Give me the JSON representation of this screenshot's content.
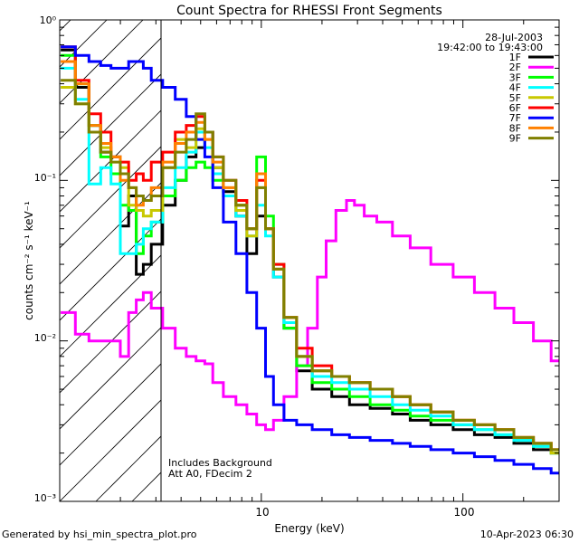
{
  "chart_data": {
    "type": "line",
    "title": "Count Spectra for RHESSI Front Segments",
    "xlabel": "Energy (keV)",
    "ylabel": "counts cm⁻² s⁻¹ keV⁻¹",
    "xscale": "log",
    "yscale": "log",
    "xlim": [
      1.0,
      300.0
    ],
    "ylim": [
      0.001,
      1.0
    ],
    "x_ticks": [
      "10",
      "100"
    ],
    "y_ticks": [
      "10⁻³",
      "10⁻²",
      "10⁻¹",
      "10⁰"
    ],
    "date": "28-Jul-2003",
    "time_range": "19:42:00 to 19:43:00",
    "attenuator_threshold_kev": 3.0,
    "annotations": [
      "Includes Background",
      "Att A0, FDecim 2"
    ],
    "legend_position": "top-right",
    "series": [
      {
        "name": "1F",
        "color": "#000000",
        "x": [
          1.1,
          1.3,
          1.5,
          1.7,
          1.9,
          2.1,
          2.3,
          2.5,
          2.7,
          3.0,
          3.5,
          4.0,
          4.5,
          5.0,
          5.5,
          6.0,
          7.0,
          8.0,
          9.0,
          10.0,
          11.0,
          12.0,
          14.0,
          16.0,
          20.0,
          25.0,
          30.0,
          40.0,
          50.0,
          60.0,
          80.0,
          100.0,
          130.0,
          160.0,
          200.0,
          250.0,
          300.0
        ],
        "values": [
          0.65,
          0.38,
          0.22,
          0.15,
          0.14,
          0.052,
          0.08,
          0.026,
          0.03,
          0.04,
          0.07,
          0.1,
          0.14,
          0.16,
          0.2,
          0.12,
          0.085,
          0.06,
          0.035,
          0.06,
          0.05,
          0.025,
          0.012,
          0.0065,
          0.005,
          0.0045,
          0.004,
          0.0038,
          0.0035,
          0.0032,
          0.003,
          0.0028,
          0.0026,
          0.0025,
          0.0023,
          0.0021,
          0.002
        ]
      },
      {
        "name": "2F",
        "color": "#ff00ff",
        "x": [
          1.1,
          1.3,
          1.5,
          1.7,
          1.9,
          2.1,
          2.3,
          2.5,
          2.7,
          3.0,
          3.5,
          4.0,
          4.5,
          5.0,
          5.5,
          6.0,
          7.0,
          8.0,
          9.0,
          10.0,
          11.0,
          12.0,
          14.0,
          16.0,
          18.0,
          20.0,
          22.0,
          25.0,
          28.0,
          30.0,
          35.0,
          40.0,
          50.0,
          60.0,
          80.0,
          100.0,
          130.0,
          160.0,
          200.0,
          250.0,
          300.0
        ],
        "values": [
          0.015,
          0.011,
          0.01,
          0.01,
          0.01,
          0.008,
          0.015,
          0.018,
          0.02,
          0.016,
          0.012,
          0.009,
          0.008,
          0.0075,
          0.0072,
          0.0055,
          0.0045,
          0.004,
          0.0035,
          0.003,
          0.0028,
          0.0032,
          0.0045,
          0.007,
          0.012,
          0.025,
          0.042,
          0.065,
          0.075,
          0.07,
          0.06,
          0.055,
          0.045,
          0.038,
          0.03,
          0.025,
          0.02,
          0.016,
          0.013,
          0.01,
          0.0075
        ]
      },
      {
        "name": "3F",
        "color": "#00ff00",
        "x": [
          1.1,
          1.3,
          1.5,
          1.7,
          1.9,
          2.1,
          2.3,
          2.5,
          2.7,
          3.0,
          3.5,
          4.0,
          4.5,
          5.0,
          5.5,
          6.0,
          7.0,
          8.0,
          9.0,
          10.0,
          11.0,
          12.0,
          14.0,
          16.0,
          20.0,
          25.0,
          30.0,
          40.0,
          50.0,
          60.0,
          80.0,
          100.0,
          130.0,
          160.0,
          200.0,
          250.0,
          300.0
        ],
        "values": [
          0.6,
          0.4,
          0.22,
          0.14,
          0.11,
          0.07,
          0.065,
          0.035,
          0.045,
          0.055,
          0.08,
          0.1,
          0.12,
          0.13,
          0.12,
          0.1,
          0.08,
          0.07,
          0.05,
          0.14,
          0.06,
          0.03,
          0.012,
          0.007,
          0.0055,
          0.005,
          0.0045,
          0.004,
          0.0037,
          0.0034,
          0.0032,
          0.003,
          0.0028,
          0.0026,
          0.0024,
          0.0022,
          0.002
        ]
      },
      {
        "name": "4F",
        "color": "#00ffff",
        "x": [
          1.1,
          1.3,
          1.5,
          1.7,
          1.9,
          2.1,
          2.3,
          2.5,
          2.7,
          3.0,
          3.5,
          4.0,
          4.5,
          5.0,
          5.5,
          6.0,
          7.0,
          8.0,
          9.0,
          10.0,
          11.0,
          12.0,
          14.0,
          16.0,
          20.0,
          25.0,
          30.0,
          40.0,
          50.0,
          60.0,
          80.0,
          100.0,
          130.0,
          160.0,
          200.0,
          250.0,
          300.0
        ],
        "values": [
          0.5,
          0.32,
          0.095,
          0.12,
          0.095,
          0.035,
          0.035,
          0.04,
          0.05,
          0.055,
          0.09,
          0.12,
          0.15,
          0.2,
          0.16,
          0.11,
          0.08,
          0.06,
          0.045,
          0.07,
          0.045,
          0.025,
          0.013,
          0.008,
          0.006,
          0.0055,
          0.005,
          0.0045,
          0.004,
          0.0037,
          0.0034,
          0.003,
          0.0028,
          0.0026,
          0.0024,
          0.0022,
          0.002
        ]
      },
      {
        "name": "5F",
        "color": "#c8c800",
        "x": [
          1.1,
          1.3,
          1.5,
          1.7,
          1.9,
          2.1,
          2.3,
          2.5,
          2.7,
          3.0,
          3.5,
          4.0,
          4.5,
          5.0,
          5.5,
          6.0,
          7.0,
          8.0,
          9.0,
          10.0,
          11.0,
          12.0,
          14.0,
          16.0,
          20.0,
          25.0,
          30.0,
          40.0,
          50.0,
          60.0,
          80.0,
          100.0,
          130.0,
          160.0,
          200.0,
          250.0,
          300.0
        ],
        "values": [
          0.38,
          0.3,
          0.2,
          0.16,
          0.14,
          0.12,
          0.07,
          0.065,
          0.06,
          0.065,
          0.12,
          0.18,
          0.16,
          0.21,
          0.18,
          0.12,
          0.09,
          0.065,
          0.045,
          0.09,
          0.05,
          0.028,
          0.014,
          0.008,
          0.0065,
          0.006,
          0.0055,
          0.005,
          0.0045,
          0.004,
          0.0036,
          0.0032,
          0.003,
          0.0028,
          0.0025,
          0.0023,
          0.002
        ]
      },
      {
        "name": "6F",
        "color": "#ff0000",
        "x": [
          1.1,
          1.3,
          1.5,
          1.7,
          1.9,
          2.1,
          2.3,
          2.5,
          2.7,
          3.0,
          3.5,
          4.0,
          4.5,
          5.0,
          5.5,
          6.0,
          7.0,
          8.0,
          9.0,
          10.0,
          11.0,
          12.0,
          14.0,
          16.0,
          20.0,
          25.0,
          30.0,
          40.0,
          50.0,
          60.0,
          80.0,
          100.0,
          130.0,
          160.0,
          200.0,
          250.0,
          300.0
        ],
        "values": [
          0.68,
          0.42,
          0.26,
          0.2,
          0.14,
          0.13,
          0.1,
          0.11,
          0.1,
          0.13,
          0.15,
          0.2,
          0.22,
          0.25,
          0.2,
          0.14,
          0.1,
          0.075,
          0.05,
          0.1,
          0.05,
          0.03,
          0.014,
          0.009,
          0.007,
          0.006,
          0.0055,
          0.005,
          0.0045,
          0.004,
          0.0036,
          0.0032,
          0.003,
          0.0028,
          0.0025,
          0.0023,
          0.0021
        ]
      },
      {
        "name": "7F",
        "color": "#0000ff",
        "x": [
          1.1,
          1.3,
          1.5,
          1.7,
          1.9,
          2.1,
          2.3,
          2.5,
          2.7,
          3.0,
          3.5,
          4.0,
          4.5,
          5.0,
          5.5,
          6.0,
          7.0,
          8.0,
          9.0,
          10.0,
          11.0,
          12.0,
          14.0,
          16.0,
          20.0,
          25.0,
          30.0,
          40.0,
          50.0,
          60.0,
          80.0,
          100.0,
          130.0,
          160.0,
          200.0,
          250.0,
          300.0
        ],
        "values": [
          0.68,
          0.6,
          0.55,
          0.52,
          0.5,
          0.5,
          0.55,
          0.55,
          0.5,
          0.42,
          0.38,
          0.32,
          0.25,
          0.18,
          0.14,
          0.09,
          0.055,
          0.035,
          0.02,
          0.012,
          0.006,
          0.004,
          0.0032,
          0.003,
          0.0028,
          0.0026,
          0.0025,
          0.0024,
          0.0023,
          0.0022,
          0.0021,
          0.002,
          0.0019,
          0.0018,
          0.0017,
          0.0016,
          0.0015
        ]
      },
      {
        "name": "8F",
        "color": "#ff8000",
        "x": [
          1.1,
          1.3,
          1.5,
          1.7,
          1.9,
          2.1,
          2.3,
          2.5,
          2.7,
          3.0,
          3.5,
          4.0,
          4.5,
          5.0,
          5.5,
          6.0,
          7.0,
          8.0,
          9.0,
          10.0,
          11.0,
          12.0,
          14.0,
          16.0,
          20.0,
          25.0,
          30.0,
          40.0,
          50.0,
          60.0,
          80.0,
          100.0,
          130.0,
          160.0,
          200.0,
          250.0,
          300.0
        ],
        "values": [
          0.55,
          0.4,
          0.22,
          0.17,
          0.14,
          0.1,
          0.09,
          0.07,
          0.075,
          0.09,
          0.13,
          0.17,
          0.2,
          0.23,
          0.18,
          0.13,
          0.09,
          0.07,
          0.05,
          0.11,
          0.05,
          0.028,
          0.014,
          0.008,
          0.0065,
          0.006,
          0.0055,
          0.005,
          0.0045,
          0.004,
          0.0036,
          0.0032,
          0.003,
          0.0028,
          0.0025,
          0.0023,
          0.0021
        ]
      },
      {
        "name": "9F",
        "color": "#808000",
        "x": [
          1.1,
          1.3,
          1.5,
          1.7,
          1.9,
          2.1,
          2.3,
          2.5,
          2.7,
          3.0,
          3.5,
          4.0,
          4.5,
          5.0,
          5.5,
          6.0,
          7.0,
          8.0,
          9.0,
          10.0,
          11.0,
          12.0,
          14.0,
          16.0,
          20.0,
          25.0,
          30.0,
          40.0,
          50.0,
          60.0,
          80.0,
          100.0,
          130.0,
          160.0,
          200.0,
          250.0,
          300.0
        ],
        "values": [
          0.42,
          0.3,
          0.2,
          0.15,
          0.13,
          0.11,
          0.09,
          0.08,
          0.075,
          0.08,
          0.12,
          0.15,
          0.18,
          0.26,
          0.2,
          0.14,
          0.1,
          0.07,
          0.05,
          0.09,
          0.05,
          0.028,
          0.014,
          0.008,
          0.0065,
          0.006,
          0.0055,
          0.005,
          0.0045,
          0.004,
          0.0036,
          0.0032,
          0.003,
          0.0028,
          0.0025,
          0.0023,
          0.0021
        ]
      }
    ]
  },
  "footer": {
    "generated_by": "Generated by hsi_min_spectra_plot.pro",
    "timestamp": "10-Apr-2023 06:30"
  }
}
